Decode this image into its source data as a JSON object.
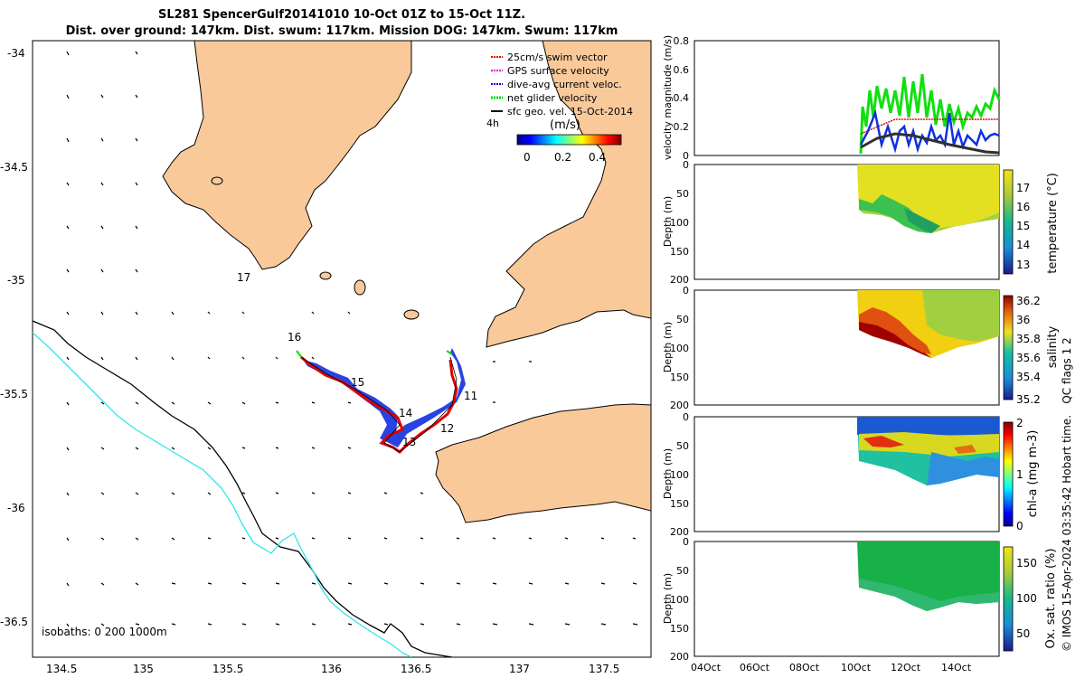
{
  "header": {
    "title_line1": "SL281 SpencerGulf20141010 10-Oct 01Z to 15-Oct 11Z.",
    "title_line2": "Dist. over ground: 147km. Dist. swum: 117km. Mission DOG: 147km. Swum: 117km"
  },
  "map": {
    "lon_ticks": [
      "134.5",
      "135",
      "135.5",
      "136",
      "136.5",
      "137",
      "137.5"
    ],
    "lat_ticks": [
      "-34",
      "-34.5",
      "-35",
      "-35.5",
      "-36",
      "-36.5"
    ],
    "day_labels": [
      "17",
      "16",
      "15",
      "14",
      "13",
      "12",
      "11"
    ],
    "isobaths_label": "isobaths: 0   200   1000m",
    "time_label": "4h",
    "legend": [
      {
        "label": "25cm/s swim vector",
        "color": "#e00000"
      },
      {
        "label": "GPS surface velocity",
        "color": "#e000e0"
      },
      {
        "label": "dive-avg current veloc.",
        "color": "#0000e0"
      },
      {
        "label": "net glider velocity",
        "color": "#00e000"
      },
      {
        "label": "sfc geo. vel. 15-Oct-2014",
        "color": "#000000"
      }
    ],
    "colorbar": {
      "unit": "(m/s)",
      "ticks": [
        "0",
        "0.2",
        "0.4"
      ]
    },
    "colors": {
      "land": "#f9c99a",
      "isobath_200": "#000000",
      "isobath_1000": "#2ee6e6"
    }
  },
  "panels": {
    "velocity": {
      "ylabel": "velocity magnitude (m/s)",
      "ticks": [
        "0",
        "0.2",
        "0.4",
        "0.6",
        "0.8"
      ]
    },
    "temperature": {
      "ylabel": "Depth (m)",
      "cb_label": "temperature (°C)",
      "depth_ticks": [
        "0",
        "50",
        "100",
        "150",
        "200"
      ],
      "cb_ticks": [
        "17",
        "16",
        "15",
        "14",
        "13"
      ]
    },
    "salinity": {
      "ylabel": "Depth (m)",
      "cb_label": "salinity",
      "depth_ticks": [
        "0",
        "50",
        "100",
        "150",
        "200"
      ],
      "cb_ticks": [
        "36.2",
        "36",
        "35.8",
        "35.6",
        "35.4",
        "35.2"
      ]
    },
    "chla": {
      "ylabel": "Depth (m)",
      "cb_label": "chl-a (mg m-3)",
      "depth_ticks": [
        "0",
        "50",
        "100",
        "150",
        "200"
      ],
      "cb_ticks": [
        "2",
        "1",
        "0"
      ]
    },
    "oxygen": {
      "ylabel": "Depth (m)",
      "cb_label": "Ox. sat. ratio (%)",
      "depth_ticks": [
        "0",
        "50",
        "100",
        "150",
        "200"
      ],
      "cb_ticks": [
        "150",
        "100",
        "50"
      ]
    },
    "date_ticks": [
      "04Oct",
      "06Oct",
      "08Oct",
      "10Oct",
      "12Oct",
      "14Oct"
    ]
  },
  "footer": {
    "qc_label": "QC flags 1  2",
    "imos_label": "© IMOS 15-Apr-2024 03:35:42 Hobart time."
  }
}
